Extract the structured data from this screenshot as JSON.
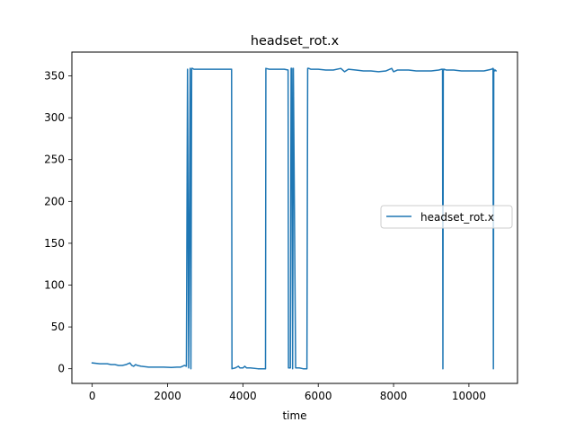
{
  "chart_data": {
    "type": "line",
    "title": "headset_rot.x",
    "xlabel": "time",
    "ylabel": "",
    "xlim": [
      -540,
      11290
    ],
    "ylim": [
      -17.5,
      378.5
    ],
    "xticks": [
      0,
      2000,
      4000,
      6000,
      8000,
      10000
    ],
    "xtick_labels": [
      "0",
      "2000",
      "4000",
      "6000",
      "8000",
      "10000"
    ],
    "yticks": [
      0,
      50,
      100,
      150,
      200,
      250,
      300,
      350
    ],
    "ytick_labels": [
      "0",
      "50",
      "100",
      "150",
      "200",
      "250",
      "300",
      "350"
    ],
    "grid": false,
    "legend_position": "center-right",
    "series": [
      {
        "name": "headset_rot.x",
        "color": "#1f77b4",
        "x": [
          0,
          200,
          400,
          500,
          600,
          700,
          800,
          900,
          950,
          1000,
          1050,
          1100,
          1150,
          1200,
          1300,
          1500,
          1700,
          1900,
          2100,
          2250,
          2350,
          2450,
          2500,
          2530,
          2560,
          2600,
          2620,
          2640,
          2660,
          2700,
          2900,
          3100,
          3300,
          3500,
          3700,
          3710,
          3800,
          3880,
          3920,
          4000,
          4050,
          4100,
          4200,
          4400,
          4600,
          4610,
          4700,
          4900,
          5100,
          5200,
          5210,
          5260,
          5280,
          5300,
          5320,
          5340,
          5400,
          5500,
          5600,
          5700,
          5720,
          5750,
          5800,
          6000,
          6200,
          6400,
          6600,
          6700,
          6800,
          7000,
          7200,
          7400,
          7600,
          7800,
          7950,
          8000,
          8100,
          8200,
          8400,
          8600,
          8800,
          9000,
          9200,
          9280,
          9300,
          9310,
          9320,
          9330,
          9340,
          9400,
          9600,
          9800,
          10000,
          10200,
          10400,
          10600,
          10640,
          10650,
          10660,
          10670,
          10680,
          10700,
          10720
        ],
        "values": [
          7,
          6,
          6,
          5,
          5,
          4,
          4,
          5,
          6,
          7,
          4,
          3,
          5,
          4,
          3,
          2,
          2,
          2,
          1.5,
          2,
          2,
          4,
          3,
          358,
          1,
          359,
          0,
          359,
          359,
          358,
          358,
          358,
          358,
          358,
          358,
          0,
          1,
          3,
          1,
          1,
          3,
          1,
          1,
          0,
          0,
          359,
          358,
          358,
          358,
          357,
          1,
          1,
          359,
          359,
          0,
          359,
          1,
          1,
          0,
          0,
          359,
          359,
          358,
          358,
          357,
          357,
          359,
          355,
          358,
          357,
          356,
          356,
          355,
          356,
          359,
          355,
          357,
          357,
          357,
          356,
          356,
          356,
          357,
          358,
          358,
          0,
          358,
          357,
          358,
          357,
          357,
          356,
          356,
          356,
          356,
          358,
          359,
          0,
          358,
          357,
          356,
          357,
          356
        ]
      }
    ]
  }
}
